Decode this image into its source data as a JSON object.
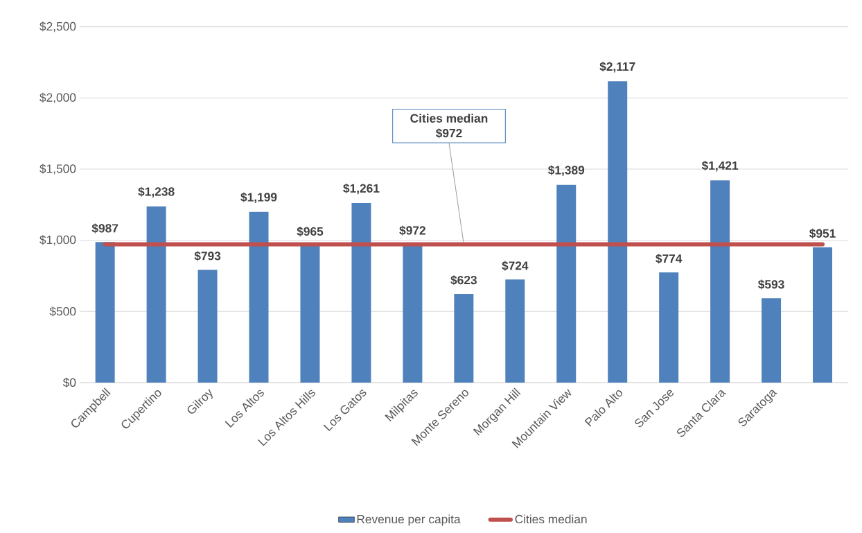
{
  "chart_data": {
    "type": "bar",
    "categories": [
      "Campbell",
      "Cupertino",
      "Gilroy",
      "Los Altos",
      "Los Altos Hills",
      "Los Gatos",
      "Milpitas",
      "Monte Sereno",
      "Morgan Hill",
      "Mountain View",
      "Palo Alto",
      "San Jose",
      "Santa Clara",
      "Saratoga",
      null
    ],
    "series": [
      {
        "name": "Revenue per capita",
        "color": "#4f81bd",
        "values": [
          987,
          1238,
          793,
          1199,
          965,
          1261,
          972,
          623,
          724,
          1389,
          2117,
          774,
          1421,
          593,
          951
        ],
        "value_labels": [
          "$987",
          "$1,238",
          "$793",
          "$1,199",
          "$965",
          "$1,261",
          "$972",
          "$623",
          "$724",
          "$1,389",
          "$2,117",
          "$774",
          "$1,421",
          "$593",
          "$951"
        ]
      },
      {
        "name": "Cities median",
        "type": "line",
        "color": "#c0504d",
        "values": [
          972,
          972,
          972,
          972,
          972,
          972,
          972,
          972,
          972,
          972,
          972,
          972,
          972,
          972,
          972
        ]
      }
    ],
    "ylim": [
      0,
      2500
    ],
    "yticks": [
      {
        "value": 0,
        "label": "$0"
      },
      {
        "value": 500,
        "label": "$500"
      },
      {
        "value": 1000,
        "label": "$1,000"
      },
      {
        "value": 1500,
        "label": "$1,500"
      },
      {
        "value": 2000,
        "label": "$2,000"
      },
      {
        "value": 2500,
        "label": "$2,500"
      }
    ],
    "grid": "y",
    "legend": "bottom",
    "annotations": [
      {
        "text": "Cities median $972",
        "x": "Monte Sereno",
        "y": 972
      }
    ]
  }
}
